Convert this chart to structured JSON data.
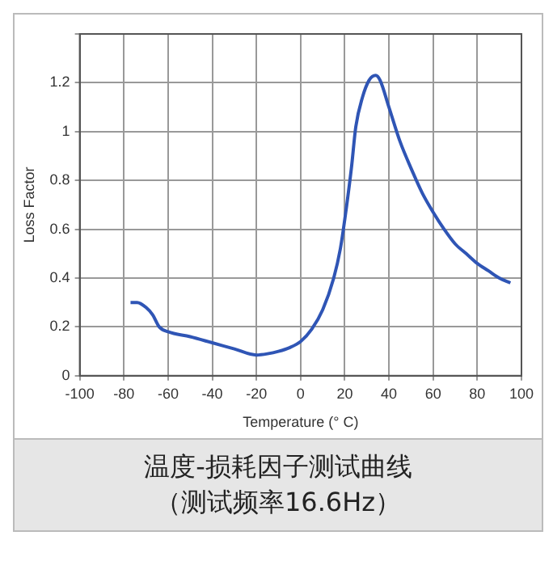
{
  "chart_data": {
    "type": "line",
    "xlabel": "Temperature (° C)",
    "ylabel": "Loss Factor",
    "annotations": [
      "温度-损耗因子测试曲线",
      "（测试频率16.6Hz）"
    ],
    "x": [
      -77,
      -74,
      -70,
      -67,
      -64,
      -60,
      -50,
      -40,
      -30,
      -20,
      -15,
      -10,
      -5,
      0,
      5,
      10,
      15,
      18,
      20,
      23,
      25,
      28,
      31,
      34,
      36,
      40,
      45,
      50,
      55,
      60,
      65,
      70,
      75,
      80,
      85,
      90,
      95
    ],
    "series": [
      {
        "color": "#2f55b5",
        "values": [
          0.3,
          0.3,
          0.28,
          0.25,
          0.2,
          0.18,
          0.16,
          0.135,
          0.11,
          0.085,
          0.09,
          0.1,
          0.115,
          0.14,
          0.19,
          0.27,
          0.4,
          0.52,
          0.64,
          0.85,
          1.02,
          1.14,
          1.21,
          1.23,
          1.21,
          1.1,
          0.96,
          0.85,
          0.75,
          0.67,
          0.6,
          0.54,
          0.5,
          0.46,
          0.43,
          0.4,
          0.38
        ]
      }
    ],
    "xlim": [
      -100,
      100
    ],
    "xticks": [
      -100,
      -80,
      -60,
      -40,
      -20,
      0,
      20,
      40,
      60,
      80,
      100
    ],
    "ylim": [
      0,
      1.4
    ],
    "yticks": [
      0,
      0.2,
      0.4,
      0.6,
      0.8,
      1,
      1.2,
      {
        "value": 1.4,
        "label": null
      }
    ],
    "grid": true,
    "legend": false,
    "marker": "none",
    "line_style": "solid"
  }
}
